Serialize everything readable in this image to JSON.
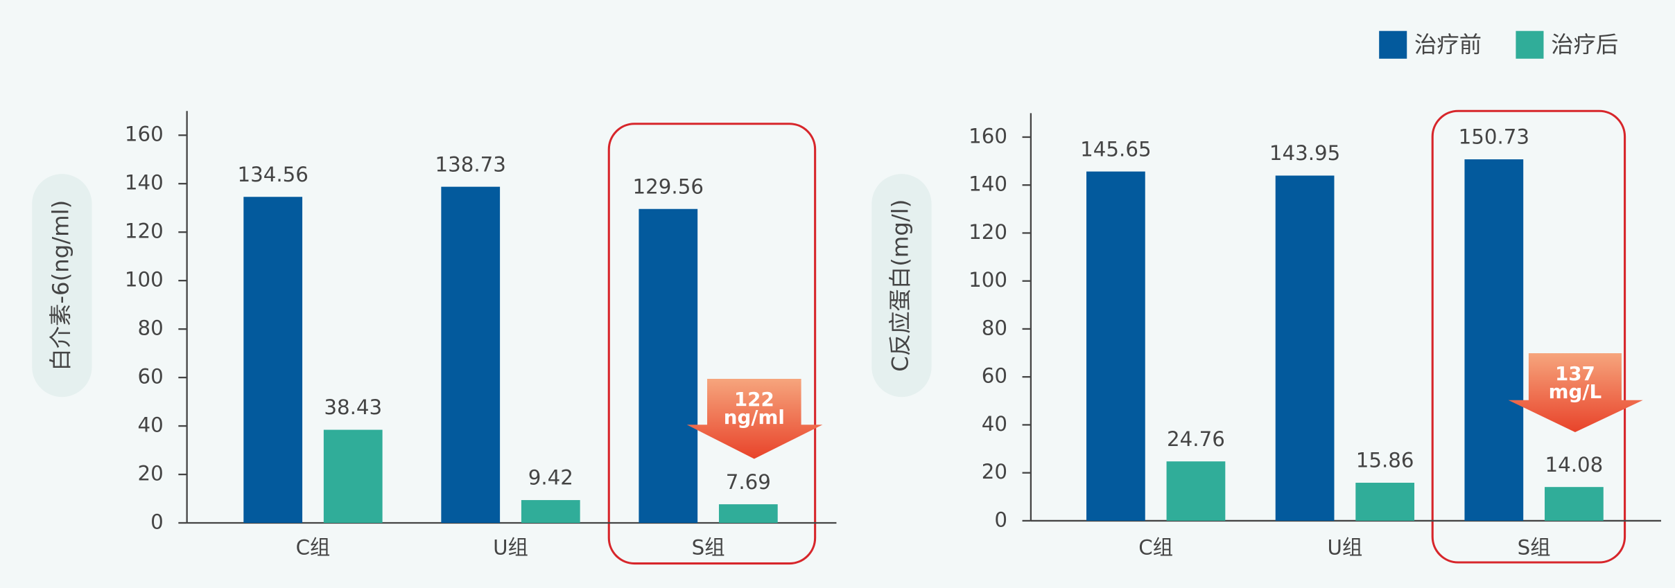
{
  "chart_data": [
    {
      "type": "bar",
      "y_label": "白介素-6(ng/ml)",
      "categories": [
        "C组",
        "U组",
        "S组"
      ],
      "series": [
        {
          "name": "治疗前",
          "color": "#035a9d",
          "values": [
            134.56,
            138.73,
            129.56
          ]
        },
        {
          "name": "治疗后",
          "color": "#30ad99",
          "values": [
            38.43,
            9.42,
            7.69
          ]
        }
      ],
      "ylim": [
        0,
        170
      ],
      "yticks": [
        0,
        20,
        40,
        60,
        80,
        100,
        120,
        140,
        160
      ],
      "annotation": [
        "122",
        "ng/ml"
      ]
    },
    {
      "type": "bar",
      "y_label": "C反应蛋白(mg/l)",
      "categories": [
        "C组",
        "U组",
        "S组"
      ],
      "series": [
        {
          "name": "治疗前",
          "color": "#035a9d",
          "values": [
            145.65,
            143.95,
            150.73
          ]
        },
        {
          "name": "治疗后",
          "color": "#30ad99",
          "values": [
            24.76,
            15.86,
            14.08
          ]
        }
      ],
      "ylim": [
        0,
        170
      ],
      "yticks": [
        0,
        20,
        40,
        60,
        80,
        100,
        120,
        140,
        160
      ],
      "annotation": [
        "137",
        "mg/L"
      ]
    }
  ]
}
